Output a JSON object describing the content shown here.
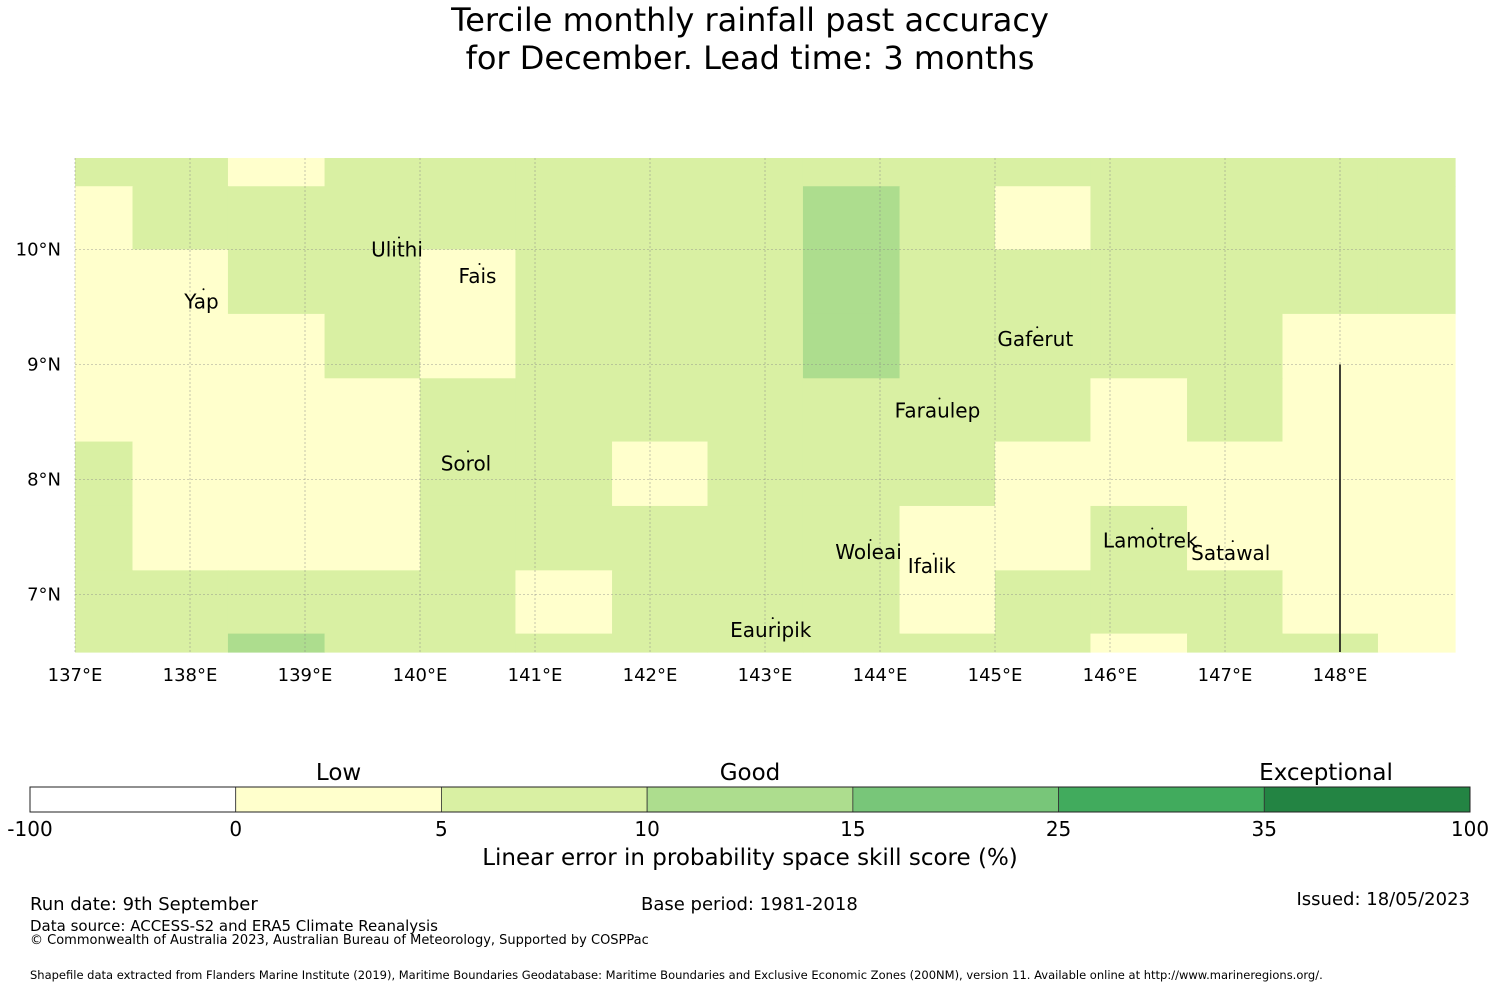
{
  "title": {
    "line1": "Tercile monthly rainfall past accuracy",
    "line2": "for December. Lead time: 3 months"
  },
  "map": {
    "lon_range": [
      137,
      149
    ],
    "lat_range": [
      6.5,
      10.8
    ],
    "lon_ticks": [
      {
        "value": 137,
        "label": "137°E"
      },
      {
        "value": 138,
        "label": "138°E"
      },
      {
        "value": 139,
        "label": "139°E"
      },
      {
        "value": 140,
        "label": "140°E"
      },
      {
        "value": 141,
        "label": "141°E"
      },
      {
        "value": 142,
        "label": "142°E"
      },
      {
        "value": 143,
        "label": "143°E"
      },
      {
        "value": 144,
        "label": "144°E"
      },
      {
        "value": 145,
        "label": "145°E"
      },
      {
        "value": 146,
        "label": "146°E"
      },
      {
        "value": 147,
        "label": "147°E"
      },
      {
        "value": 148,
        "label": "148°E"
      }
    ],
    "lat_ticks": [
      {
        "value": 10,
        "label": "10°N"
      },
      {
        "value": 9,
        "label": "9°N"
      },
      {
        "value": 8,
        "label": "8°N"
      },
      {
        "value": 7,
        "label": "7°N"
      }
    ],
    "colors": {
      "c0": "#ffffcc",
      "c5": "#d9f0a3",
      "c10": "#addd8e",
      "c15": "#78c679",
      "c25": "#41ab5d",
      "c35": "#238443",
      "grid": "#888888"
    },
    "grid_lon_edges": [
      137,
      137.5,
      138.33,
      139.17,
      140.0,
      140.83,
      141.67,
      142.5,
      143.33,
      144.17,
      145.0,
      145.83,
      146.67,
      147.5,
      148.33,
      149
    ],
    "grid_lat_edges": [
      10.8,
      10.55,
      10.0,
      9.44,
      8.88,
      8.33,
      7.77,
      7.21,
      6.66,
      6.5
    ],
    "grid_classes": [
      [
        "c5",
        "c5",
        "c0",
        "c5",
        "c5",
        "c5",
        "c5",
        "c5",
        "c5",
        "c5",
        "c5",
        "c5",
        "c5",
        "c5",
        "c5"
      ],
      [
        "c0",
        "c5",
        "c5",
        "c5",
        "c5",
        "c5",
        "c5",
        "c5",
        "c10",
        "c5",
        "c0",
        "c5",
        "c5",
        "c5",
        "c5"
      ],
      [
        "c0",
        "c0",
        "c5",
        "c5",
        "c0",
        "c5",
        "c5",
        "c5",
        "c10",
        "c5",
        "c5",
        "c5",
        "c5",
        "c5",
        "c5"
      ],
      [
        "c0",
        "c0",
        "c0",
        "c5",
        "c0",
        "c5",
        "c5",
        "c5",
        "c10",
        "c5",
        "c5",
        "c5",
        "c5",
        "c0",
        "c0"
      ],
      [
        "c0",
        "c0",
        "c0",
        "c0",
        "c5",
        "c5",
        "c5",
        "c5",
        "c5",
        "c5",
        "c5",
        "c0",
        "c5",
        "c0",
        "c0"
      ],
      [
        "c5",
        "c0",
        "c0",
        "c0",
        "c5",
        "c5",
        "c0",
        "c5",
        "c5",
        "c5",
        "c0",
        "c0",
        "c0",
        "c0",
        "c0"
      ],
      [
        "c5",
        "c0",
        "c0",
        "c0",
        "c5",
        "c5",
        "c5",
        "c5",
        "c5",
        "c0",
        "c0",
        "c5",
        "c0",
        "c0",
        "c0"
      ],
      [
        "c5",
        "c5",
        "c5",
        "c5",
        "c5",
        "c0",
        "c5",
        "c5",
        "c5",
        "c0",
        "c5",
        "c5",
        "c5",
        "c0",
        "c0"
      ],
      [
        "c5",
        "c5",
        "c10",
        "c5",
        "c5",
        "c5",
        "c5",
        "c5",
        "c5",
        "c5",
        "c5",
        "c0",
        "c5",
        "c5",
        "c0"
      ]
    ],
    "boundary_line": {
      "lon": 148.0,
      "lat_from": 9.0,
      "lat_to": 6.5
    },
    "places": [
      {
        "name": "Ulithi",
        "lon": 139.8,
        "lat": 10.0
      },
      {
        "name": "Fais",
        "lon": 140.5,
        "lat": 9.77
      },
      {
        "name": "Yap",
        "lon": 138.1,
        "lat": 9.55
      },
      {
        "name": "Gaferut",
        "lon": 145.35,
        "lat": 9.22
      },
      {
        "name": "Faraulep",
        "lon": 144.5,
        "lat": 8.6
      },
      {
        "name": "Sorol",
        "lon": 140.4,
        "lat": 8.14
      },
      {
        "name": "Woleai",
        "lon": 143.9,
        "lat": 7.37
      },
      {
        "name": "Ifalik",
        "lon": 144.45,
        "lat": 7.25
      },
      {
        "name": "Lamotrek",
        "lon": 146.35,
        "lat": 7.47
      },
      {
        "name": "Satawal",
        "lon": 147.05,
        "lat": 7.36
      },
      {
        "name": "Eauripik",
        "lon": 143.05,
        "lat": 6.69
      }
    ]
  },
  "colorbar": {
    "category_labels": [
      {
        "label": "Low",
        "pos": 1.5
      },
      {
        "label": "Good",
        "pos": 3.5
      },
      {
        "label": "Exceptional",
        "pos": 6.3
      }
    ],
    "ticks": [
      "-100",
      "0",
      "5",
      "10",
      "15",
      "25",
      "35",
      "100"
    ],
    "segment_colors": [
      "#ffffff",
      "#ffffcc",
      "#d9f0a3",
      "#addd8e",
      "#78c679",
      "#41ab5d",
      "#238443"
    ],
    "label": "Linear error in probability space skill score (%)"
  },
  "footer": {
    "run_date": "Run date: 9th September",
    "base_period": "Base period: 1981-2018",
    "issued": "Issued: 18/05/2023",
    "data_source": "Data source: ACCESS-S2 and ERA5 Climate Reanalysis",
    "copyright": "© Commonwealth of Australia 2023, Australian Bureau of Meteorology, Supported by COSPPac",
    "shapefile": "Shapefile data extracted from Flanders Marine Institute (2019), Maritime Boundaries Geodatabase: Maritime Boundaries and Exclusive Economic Zones (200NM), version 11. Available online at http://www.marineregions.org/."
  }
}
